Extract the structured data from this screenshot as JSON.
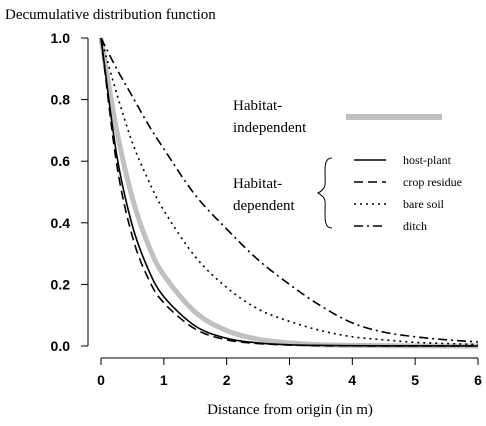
{
  "chart_data": {
    "type": "line",
    "title": "Decumulative distribution function",
    "xlabel": "Distance from origin (in m)",
    "ylabel": "",
    "xlim": [
      0,
      6
    ],
    "ylim": [
      0,
      1
    ],
    "x_ticks": [
      "0",
      "1",
      "2",
      "3",
      "4",
      "5",
      "6"
    ],
    "y_ticks": [
      "0.0",
      "0.2",
      "0.4",
      "0.6",
      "0.8",
      "1.0"
    ],
    "grid": false,
    "legend": {
      "placement": "right",
      "independent_group_label": [
        "Habitat-",
        "independent"
      ],
      "dependent_group_label": [
        "Habitat-",
        "dependent"
      ]
    },
    "x": [
      0,
      0.25,
      0.5,
      0.75,
      1,
      1.5,
      2,
      2.5,
      3,
      3.5,
      4,
      4.5,
      5,
      5.5,
      6
    ],
    "series": [
      {
        "name": "host-plant",
        "group": "dependent",
        "color": "#000000",
        "dash": "solid",
        "values": [
          1.0,
          0.62,
          0.39,
          0.25,
          0.16,
          0.065,
          0.025,
          0.01,
          0.004,
          0.002,
          0.001,
          0.0005,
          0.0002,
          0.0001,
          0.0
        ]
      },
      {
        "name": "crop residue",
        "group": "dependent",
        "color": "#000000",
        "dash": "long-dash",
        "values": [
          1.0,
          0.59,
          0.355,
          0.22,
          0.14,
          0.055,
          0.02,
          0.008,
          0.003,
          0.001,
          0.0005,
          0.0002,
          0.0001,
          0.0,
          0.0
        ]
      },
      {
        "name": "bare soil",
        "group": "dependent",
        "color": "#000000",
        "dash": "dotted",
        "values": [
          1.0,
          0.82,
          0.66,
          0.54,
          0.44,
          0.29,
          0.19,
          0.12,
          0.08,
          0.05,
          0.03,
          0.02,
          0.012,
          0.008,
          0.005
        ]
      },
      {
        "name": "ditch",
        "group": "dependent",
        "color": "#000000",
        "dash": "dash-dot",
        "values": [
          1.0,
          0.9,
          0.81,
          0.72,
          0.64,
          0.49,
          0.38,
          0.28,
          0.2,
          0.13,
          0.075,
          0.045,
          0.03,
          0.02,
          0.013
        ]
      },
      {
        "name": "",
        "group": "independent",
        "color": "#c0c0c0",
        "dash": "solid-thick",
        "values": [
          1.0,
          0.7,
          0.48,
          0.33,
          0.23,
          0.11,
          0.05,
          0.022,
          0.01,
          0.004,
          0.002,
          0.001,
          0.0005,
          0.0002,
          0.0
        ]
      }
    ]
  }
}
